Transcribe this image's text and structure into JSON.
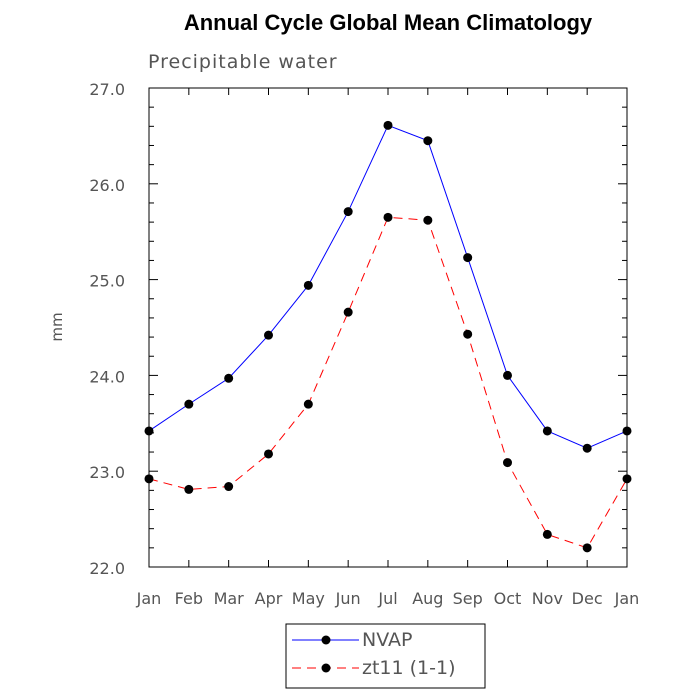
{
  "chart_data": {
    "type": "line",
    "title": "Annual Cycle Global Mean Climatology",
    "subtitle": "Precipitable water",
    "xlabel": "",
    "ylabel": "mm",
    "categories": [
      "Jan",
      "Feb",
      "Mar",
      "Apr",
      "May",
      "Jun",
      "Jul",
      "Aug",
      "Sep",
      "Oct",
      "Nov",
      "Dec",
      "Jan"
    ],
    "ylim": [
      22.0,
      27.0
    ],
    "yticks": [
      "22.0",
      "23.0",
      "24.0",
      "25.0",
      "26.0",
      "27.0"
    ],
    "grid": false,
    "legend_position": "bottom",
    "series": [
      {
        "name": "NVAP",
        "color": "#0000ff",
        "line_style": "solid",
        "marker": "filled-circle",
        "values": [
          23.42,
          23.7,
          23.97,
          24.42,
          24.94,
          25.71,
          26.61,
          26.45,
          25.23,
          24.0,
          23.42,
          23.24,
          23.42
        ]
      },
      {
        "name": "zt11 (1-1)",
        "color": "#ff0000",
        "line_style": "dashed",
        "marker": "filled-circle",
        "values": [
          22.92,
          22.81,
          22.84,
          23.18,
          23.7,
          24.66,
          25.65,
          25.62,
          24.43,
          23.09,
          22.34,
          22.2,
          22.92
        ]
      }
    ]
  }
}
